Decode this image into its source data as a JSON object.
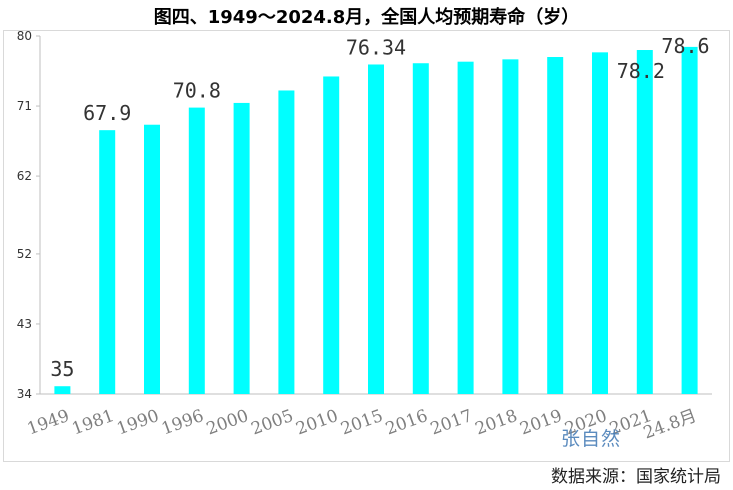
{
  "title": "图四、1949～2024.8月，全国人均预期寿命（岁）",
  "source": "数据来源：国家统计局",
  "watermark": "张自然",
  "colors": {
    "bar": "#00FFFF",
    "axis": "#bfbfbf",
    "grid": "#d9d9d9"
  },
  "chart_data": {
    "type": "bar",
    "title": "图四、1949～2024.8月，全国人均预期寿命（岁）",
    "xlabel": "",
    "ylabel": "",
    "ylim": [
      34,
      80
    ],
    "yticks": [
      "34",
      "43",
      "52",
      "62",
      "71",
      "80"
    ],
    "categories": [
      "1949",
      "1981",
      "1990",
      "1996",
      "2000",
      "2005",
      "2010",
      "2015",
      "2016",
      "2017",
      "2018",
      "2019",
      "2020",
      "2021",
      "24.8月"
    ],
    "values": [
      35,
      67.9,
      68.6,
      70.8,
      71.4,
      73.0,
      74.8,
      76.34,
      76.5,
      76.7,
      77.0,
      77.3,
      77.9,
      78.2,
      78.6
    ],
    "data_labels": [
      {
        "index": 0,
        "text": "35"
      },
      {
        "index": 1,
        "text": "67.9"
      },
      {
        "index": 3,
        "text": "70.8"
      },
      {
        "index": 7,
        "text": "76.34"
      },
      {
        "index": 13,
        "text": "78.2"
      },
      {
        "index": 14,
        "text": "78.6"
      }
    ],
    "grid": false,
    "legend": "none"
  }
}
